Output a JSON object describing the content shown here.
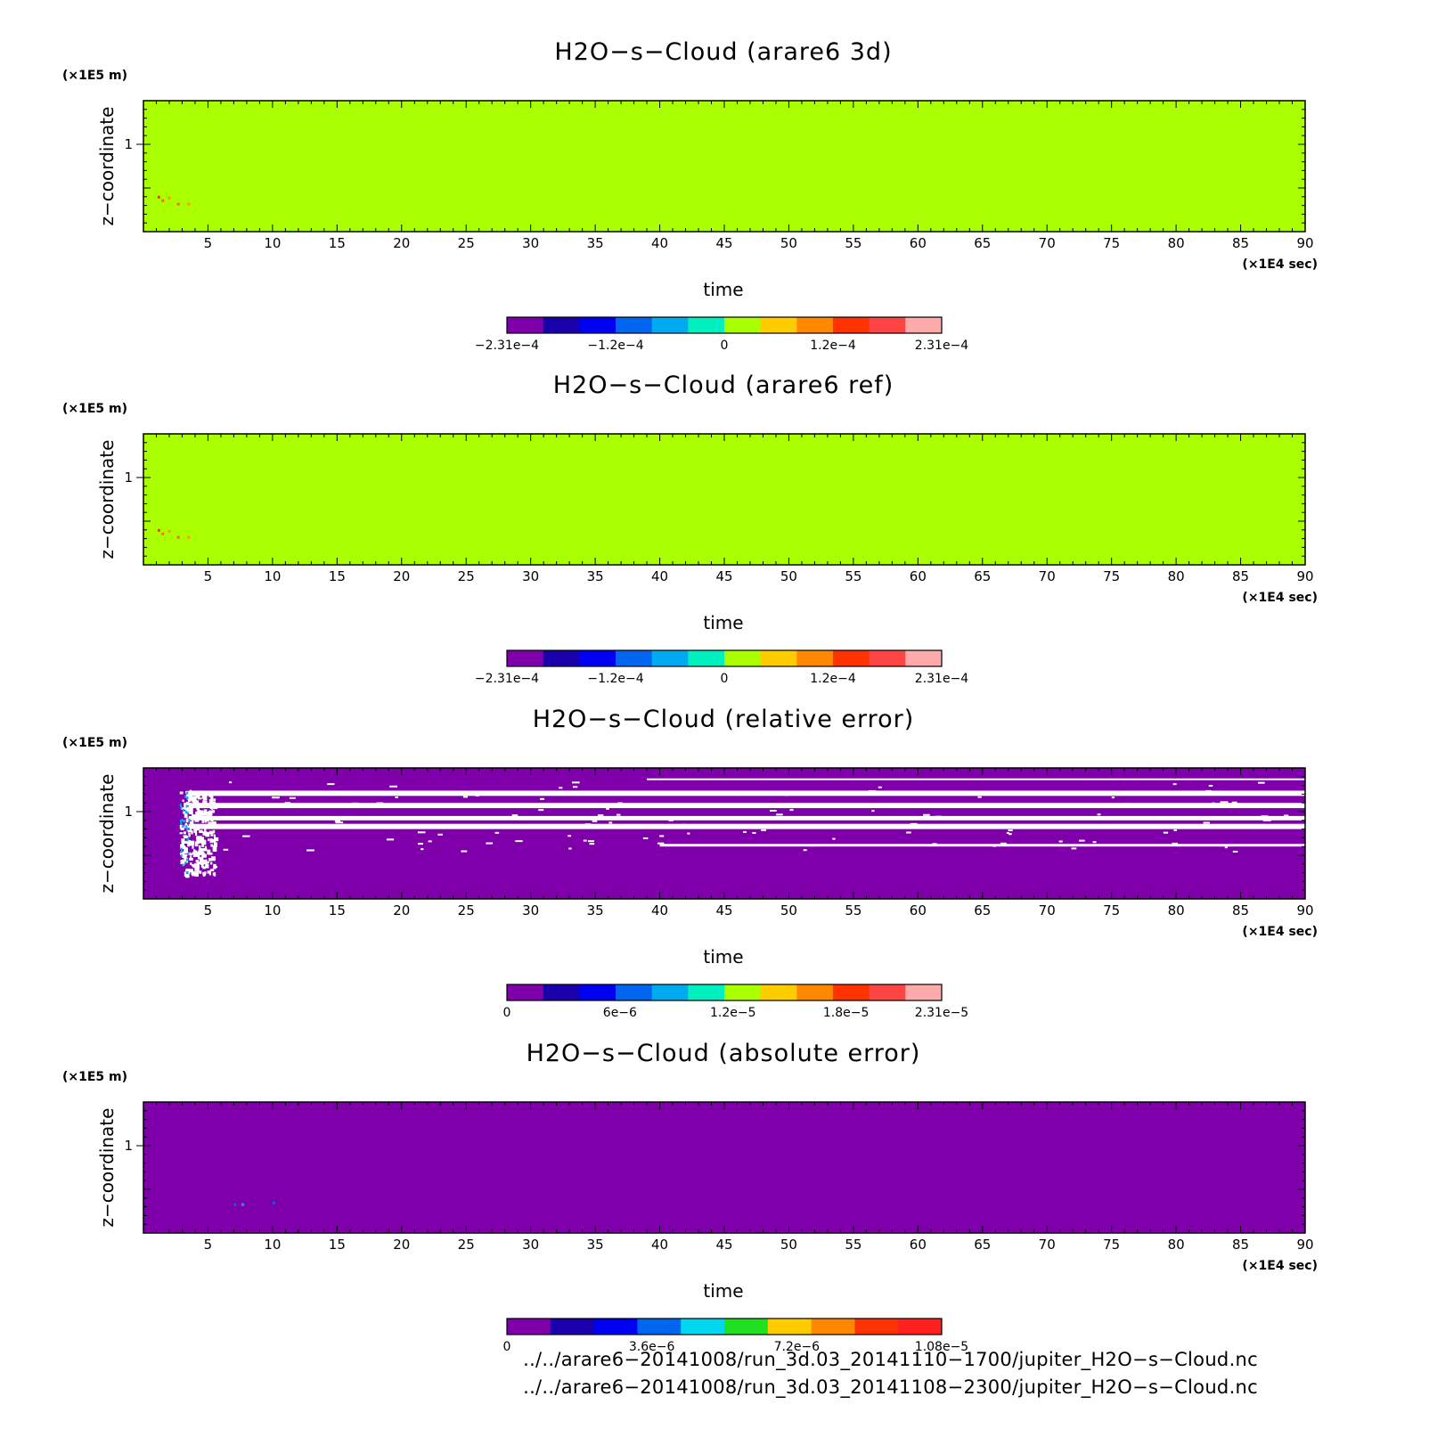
{
  "chart_data": [
    {
      "type": "heatmap",
      "title": "H2O−s−Cloud (arare6 3d)",
      "xlabel": "time",
      "ylabel": "z−coordinate",
      "x_unit": "(×1E4 sec)",
      "y_unit": "(×1E5 m)",
      "xlim": [
        0,
        90
      ],
      "ylim": [
        0,
        1.5
      ],
      "x_ticks": [
        "5",
        "10",
        "15",
        "20",
        "25",
        "30",
        "35",
        "40",
        "45",
        "50",
        "55",
        "60",
        "65",
        "70",
        "75",
        "80",
        "85",
        "90"
      ],
      "y_ticks": [
        "1"
      ],
      "field": "uniform",
      "fill_color": "#aaff00",
      "speckles": [
        {
          "x": 1.4,
          "y": 0.37,
          "color": "#ff6600"
        },
        {
          "x": 1.9,
          "y": 0.4,
          "color": "#ff9900"
        },
        {
          "x": 1.1,
          "y": 0.41,
          "color": "#ff3300"
        },
        {
          "x": 2.6,
          "y": 0.33,
          "color": "#ff6600"
        },
        {
          "x": 3.4,
          "y": 0.33,
          "color": "#ff9900"
        }
      ],
      "colorbar": {
        "colors": [
          "#7f00aa",
          "#1a00aa",
          "#0000f0",
          "#0066f0",
          "#00aaf0",
          "#00f0c0",
          "#aaff00",
          "#ffcc00",
          "#ff8800",
          "#ff3300",
          "#ff4444",
          "#ffaaaa"
        ],
        "labels": [
          "−2.31e−4",
          "−1.2e−4",
          "0",
          "1.2e−4",
          "2.31e−4"
        ],
        "label_fracs": [
          0,
          0.25,
          0.5,
          0.75,
          1
        ]
      }
    },
    {
      "type": "heatmap",
      "title": "H2O−s−Cloud (arare6 ref)",
      "xlabel": "time",
      "ylabel": "z−coordinate",
      "x_unit": "(×1E4 sec)",
      "y_unit": "(×1E5 m)",
      "xlim": [
        0,
        90
      ],
      "ylim": [
        0,
        1.5
      ],
      "x_ticks": [
        "5",
        "10",
        "15",
        "20",
        "25",
        "30",
        "35",
        "40",
        "45",
        "50",
        "55",
        "60",
        "65",
        "70",
        "75",
        "80",
        "85",
        "90"
      ],
      "y_ticks": [
        "1"
      ],
      "field": "uniform",
      "fill_color": "#aaff00",
      "speckles": [
        {
          "x": 1.4,
          "y": 0.37,
          "color": "#ff6600"
        },
        {
          "x": 1.9,
          "y": 0.4,
          "color": "#ff9900"
        },
        {
          "x": 1.1,
          "y": 0.41,
          "color": "#ff3300"
        },
        {
          "x": 2.6,
          "y": 0.33,
          "color": "#ff6600"
        },
        {
          "x": 3.4,
          "y": 0.33,
          "color": "#ff9900"
        }
      ],
      "colorbar": {
        "colors": [
          "#7f00aa",
          "#1a00aa",
          "#0000f0",
          "#0066f0",
          "#00aaf0",
          "#00f0c0",
          "#aaff00",
          "#ffcc00",
          "#ff8800",
          "#ff3300",
          "#ff4444",
          "#ffaaaa"
        ],
        "labels": [
          "−2.31e−4",
          "−1.2e−4",
          "0",
          "1.2e−4",
          "2.31e−4"
        ],
        "label_fracs": [
          0,
          0.25,
          0.5,
          0.75,
          1
        ]
      }
    },
    {
      "type": "heatmap",
      "title": "H2O−s−Cloud (relative error)",
      "xlabel": "time",
      "ylabel": "z−coordinate",
      "x_unit": "(×1E4 sec)",
      "y_unit": "(×1E5 m)",
      "xlim": [
        0,
        90
      ],
      "ylim": [
        0,
        1.5
      ],
      "x_ticks": [
        "5",
        "10",
        "15",
        "20",
        "25",
        "30",
        "35",
        "40",
        "45",
        "50",
        "55",
        "60",
        "65",
        "70",
        "75",
        "80",
        "85",
        "90"
      ],
      "y_ticks": [
        "1"
      ],
      "field": "bands",
      "fill_color": "#7f00aa",
      "gap_color": "#ffffff",
      "bands": [
        {
          "x0": 3.5,
          "x1": 90,
          "y0": 1.18,
          "y1": 1.24
        },
        {
          "x0": 3.5,
          "x1": 90,
          "y0": 1.04,
          "y1": 1.1
        },
        {
          "x0": 3.5,
          "x1": 90,
          "y0": 0.9,
          "y1": 0.95
        },
        {
          "x0": 3.5,
          "x1": 90,
          "y0": 0.8,
          "y1": 0.86
        },
        {
          "x0": 39,
          "x1": 90,
          "y0": 1.36,
          "y1": 1.38
        },
        {
          "x0": 40,
          "x1": 90,
          "y0": 0.6,
          "y1": 0.63
        }
      ],
      "column_region": {
        "x0": 2.8,
        "x1": 5.5,
        "y0": 0.3,
        "y1": 1.25
      },
      "colorbar": {
        "colors": [
          "#7f00aa",
          "#1a00aa",
          "#0000f0",
          "#0066f0",
          "#00aaf0",
          "#00f0c0",
          "#aaff00",
          "#ffcc00",
          "#ff8800",
          "#ff3300",
          "#ff4444",
          "#ffaaaa"
        ],
        "labels": [
          "0",
          "6e−6",
          "1.2e−5",
          "1.8e−5",
          "2.31e−5"
        ],
        "label_fracs": [
          0,
          0.26,
          0.52,
          0.78,
          1
        ]
      }
    },
    {
      "type": "heatmap",
      "title": "H2O−s−Cloud (absolute error)",
      "xlabel": "time",
      "ylabel": "z−coordinate",
      "x_unit": "(×1E4 sec)",
      "y_unit": "(×1E5 m)",
      "xlim": [
        0,
        90
      ],
      "ylim": [
        0,
        1.5
      ],
      "x_ticks": [
        "5",
        "10",
        "15",
        "20",
        "25",
        "30",
        "35",
        "40",
        "45",
        "50",
        "55",
        "60",
        "65",
        "70",
        "75",
        "80",
        "85",
        "90"
      ],
      "y_ticks": [
        "1"
      ],
      "field": "uniform",
      "fill_color": "#7f00aa",
      "speckles": [
        {
          "x": 7.0,
          "y": 0.34,
          "color": "#0066f0"
        },
        {
          "x": 7.6,
          "y": 0.34,
          "color": "#00aaf0"
        },
        {
          "x": 10.0,
          "y": 0.36,
          "color": "#0066f0"
        }
      ],
      "colorbar": {
        "colors": [
          "#7f00aa",
          "#1a00aa",
          "#0000f0",
          "#0066f0",
          "#00d8f0",
          "#20e020",
          "#ffcc00",
          "#ff8800",
          "#ff3300",
          "#ff2020"
        ],
        "labels": [
          "0",
          "3.6e−6",
          "7.2e−6",
          "1.08e−5"
        ],
        "label_fracs": [
          0,
          0.3333,
          0.6667,
          1
        ]
      }
    }
  ],
  "footer": {
    "paths": [
      "../../arare6−20141008/run_3d.03_20141110−1700/jupiter_H2O−s−Cloud.nc",
      "../../arare6−20141008/run_3d.03_20141108−2300/jupiter_H2O−s−Cloud.nc"
    ]
  }
}
